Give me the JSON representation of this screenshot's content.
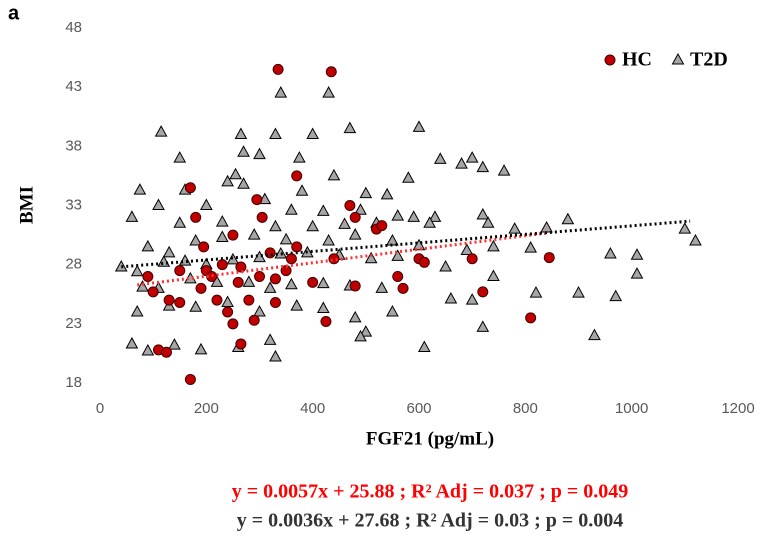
{
  "chart_data": {
    "type": "scatter",
    "panel_label": "a",
    "x_label": "FGF21 (pg/mL)",
    "y_label": "BMI",
    "xlim": [
      0,
      1200
    ],
    "xticks": [
      0,
      200,
      400,
      600,
      800,
      1000,
      1200
    ],
    "ylim": [
      18,
      48
    ],
    "yticks": [
      18,
      23,
      28,
      33,
      38,
      43,
      48
    ],
    "grid": false,
    "legend": "top-right",
    "annotations": [
      "y = 0.0057x + 25.88 ; R² Adj = 0.037 ; p = 0.049",
      "y = 0.0036x + 27.68 ; R² Adj = 0.03   ; p = 0.004"
    ],
    "series": [
      {
        "name": "HC",
        "marker": "circle",
        "color": "#c00000",
        "trend_color": "#ff3030",
        "x": [
          335,
          435,
          170,
          370,
          180,
          295,
          470,
          305,
          480,
          520,
          530,
          250,
          195,
          320,
          370,
          360,
          440,
          600,
          610,
          700,
          845,
          90,
          150,
          200,
          210,
          260,
          300,
          330,
          400,
          560,
          480,
          570,
          720,
          130,
          150,
          220,
          240,
          280,
          330,
          250,
          290,
          425,
          810,
          110,
          125,
          265,
          170,
          100,
          190,
          230,
          265,
          350
        ],
        "values": [
          44.5,
          44.3,
          34.5,
          35.5,
          32,
          33.5,
          33,
          32,
          32,
          31,
          31.3,
          30.5,
          29.5,
          29,
          29.5,
          28.5,
          28.5,
          28.5,
          28.2,
          28.5,
          28.6,
          27,
          27.5,
          27.5,
          27,
          26.5,
          27,
          26.8,
          26.5,
          27,
          26.2,
          26,
          25.7,
          25,
          24.8,
          25,
          24,
          25,
          24.8,
          23,
          23.3,
          23.2,
          23.5,
          20.8,
          20.6,
          21.3,
          18.3,
          25.7,
          26,
          28,
          27.8,
          27.5
        ],
        "trend_x": [
          70,
          840
        ],
        "trend_values": [
          26.28,
          30.67
        ]
      },
      {
        "name": "T2D",
        "marker": "triangle",
        "color": "#a6a6a6",
        "trend_color": "#000000",
        "x": [
          115,
          340,
          430,
          265,
          330,
          400,
          470,
          600,
          150,
          270,
          300,
          375,
          640,
          700,
          680,
          720,
          760,
          240,
          255,
          270,
          440,
          580,
          160,
          75,
          380,
          500,
          540,
          110,
          200,
          310,
          360,
          420,
          490,
          560,
          590,
          630,
          720,
          880,
          60,
          150,
          230,
          330,
          400,
          460,
          520,
          620,
          730,
          780,
          840,
          1100,
          1120,
          90,
          130,
          180,
          230,
          290,
          350,
          430,
          480,
          550,
          600,
          690,
          740,
          810,
          1010,
          40,
          70,
          120,
          160,
          200,
          250,
          300,
          340,
          390,
          450,
          510,
          560,
          650,
          740,
          960,
          1010,
          80,
          110,
          170,
          220,
          280,
          320,
          360,
          420,
          470,
          530,
          660,
          700,
          820,
          900,
          970,
          70,
          130,
          180,
          240,
          300,
          370,
          420,
          480,
          550,
          720,
          930,
          60,
          90,
          140,
          190,
          260,
          320,
          330,
          500,
          610,
          490
        ],
        "values": [
          39.2,
          42.5,
          42.5,
          39,
          39,
          39,
          39.5,
          39.6,
          37,
          37.5,
          37.3,
          37,
          36.9,
          37,
          36.5,
          36.2,
          35.9,
          35,
          35.6,
          34.8,
          35.5,
          35.3,
          34.3,
          34.3,
          34.2,
          34,
          33.9,
          33,
          33,
          33.5,
          32.6,
          32.5,
          32.6,
          32.1,
          32,
          32,
          32.2,
          31.8,
          32,
          31.5,
          31.6,
          31.2,
          31.2,
          31.4,
          31.5,
          31.5,
          31.5,
          31,
          31.1,
          31,
          30,
          29.5,
          29,
          30,
          30.3,
          30.5,
          30.1,
          30,
          30.5,
          30,
          29.6,
          29.2,
          29.5,
          29.4,
          28.8,
          27.8,
          27.4,
          28.2,
          28.3,
          28,
          28.4,
          28.6,
          28.9,
          29,
          28.8,
          28.5,
          28.7,
          27.8,
          27,
          28.9,
          27.2,
          26.1,
          26,
          26.8,
          26.5,
          26.5,
          26,
          26.3,
          26.4,
          26.2,
          26,
          25.1,
          25,
          25.6,
          25.6,
          25.3,
          24,
          24.5,
          24.4,
          24.8,
          24,
          24.5,
          24.3,
          23.5,
          24,
          22.7,
          22,
          21.3,
          20.7,
          21.2,
          20.8,
          21,
          21.6,
          20.2,
          22.3,
          21,
          21.9
        ],
        "trend_x": [
          40,
          1110
        ],
        "trend_values": [
          27.82,
          31.68
        ]
      }
    ]
  }
}
